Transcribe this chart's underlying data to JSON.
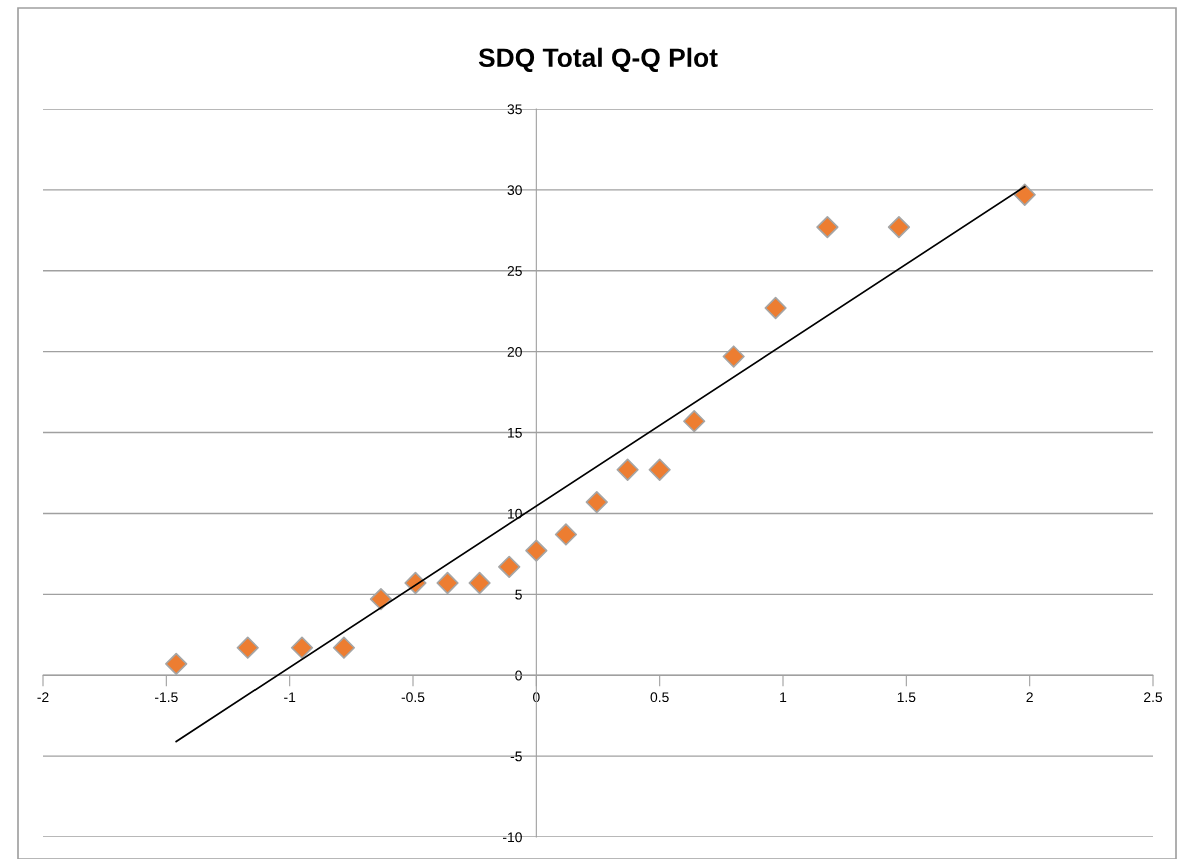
{
  "chart_data": {
    "type": "scatter",
    "title": "SDQ Total Q-Q Plot",
    "series": [
      {
        "color": "#ed7d31",
        "marker": "diamond",
        "x": [
          -1.46,
          -1.17,
          -0.95,
          -0.78,
          -0.63,
          -0.49,
          -0.36,
          -0.23,
          -0.11,
          0.0,
          0.12,
          0.245,
          0.37,
          0.5,
          0.64,
          0.8,
          0.97,
          1.18,
          1.47,
          1.98
        ],
        "values": [
          0.7,
          1.7,
          1.7,
          1.7,
          4.7,
          5.7,
          5.7,
          5.7,
          6.7,
          7.7,
          8.7,
          10.7,
          12.7,
          12.7,
          15.7,
          19.7,
          22.7,
          27.7,
          27.7,
          29.7
        ]
      },
      {
        "type": "line",
        "color": "#000000",
        "marker": "none",
        "x": [
          -1.46,
          1.98
        ],
        "values": [
          -4.1,
          30.2
        ]
      }
    ],
    "xlim": [
      -2,
      2.5
    ],
    "xticks": [
      -2,
      -1.5,
      -1,
      -0.5,
      0,
      0.5,
      1,
      1.5,
      2,
      2.5
    ],
    "ylim": [
      -10,
      35
    ],
    "yticks": [
      -10,
      -5,
      0,
      5,
      10,
      15,
      20,
      25,
      30,
      35
    ],
    "grid": "y",
    "legend": false
  }
}
